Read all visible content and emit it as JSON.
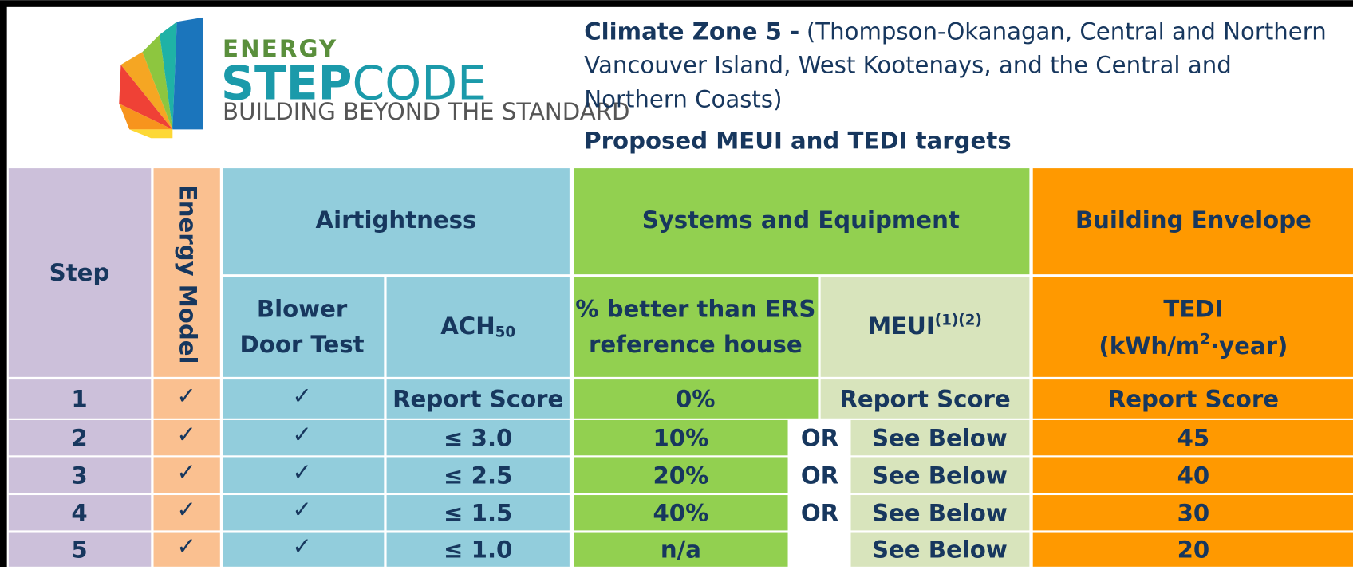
{
  "header": {
    "logo": {
      "top": "ENERGY",
      "step": "STEP",
      "code": "CODE",
      "tagline": "BUILDING BEYOND THE STANDARD"
    },
    "title_bold": "Climate Zone 5 -",
    "title_lines": [
      "(Thompson-Okanagan, Central and Northern",
      "Vancouver Island, West Kootenays, and the Central and",
      "Northern Coasts)"
    ],
    "subtitle": "Proposed MEUI and TEDI targets"
  },
  "table": {
    "headers": {
      "step": "Step",
      "energy_model": "Energy Model",
      "airtightness": "Airtightness",
      "systems": "Systems and Equipment",
      "envelope": "Building Envelope",
      "blower": [
        "Blower",
        "Door Test"
      ],
      "ach": "ACH",
      "ach_sub": "50",
      "better": [
        "% better than ERS",
        "reference house"
      ],
      "meui": "MEUI",
      "meui_sup": "(1)(2)",
      "tedi": "TEDI",
      "tedi_unit": [
        "(kWh/m",
        "2",
        "·year)"
      ]
    },
    "rows": [
      {
        "step": "1",
        "energy_model": "✓",
        "blower": "✓",
        "ach": "Report Score",
        "better": "0%",
        "meui": "Report Score",
        "tedi": "Report Score"
      },
      {
        "step": "2",
        "energy_model": "✓",
        "blower": "✓",
        "ach": "≤ 3.0",
        "better": "10%",
        "or": "OR",
        "meui": "See Below",
        "tedi": "45"
      },
      {
        "step": "3",
        "energy_model": "✓",
        "blower": "✓",
        "ach": "≤ 2.5",
        "better": "20%",
        "or": "OR",
        "meui": "See Below",
        "tedi": "40"
      },
      {
        "step": "4",
        "energy_model": "✓",
        "blower": "✓",
        "ach": "≤ 1.5",
        "better": "40%",
        "or": "OR",
        "meui": "See Below",
        "tedi": "30"
      },
      {
        "step": "5",
        "energy_model": "✓",
        "blower": "✓",
        "ach": "≤ 1.0",
        "better": "n/a",
        "meui": "See Below",
        "tedi": "20"
      }
    ]
  }
}
